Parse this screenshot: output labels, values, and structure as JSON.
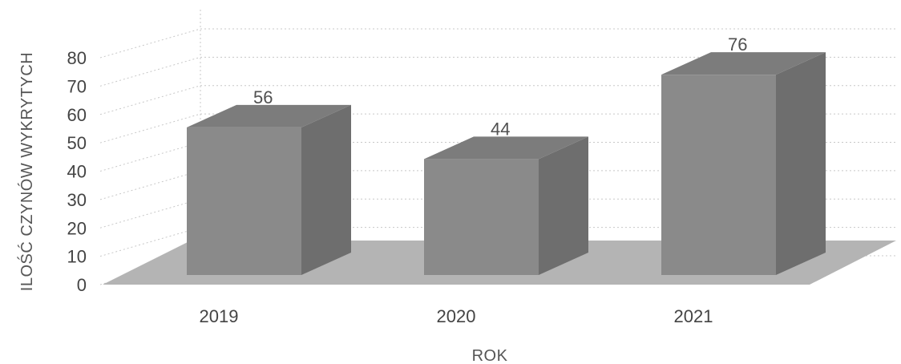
{
  "chart_data": {
    "type": "bar",
    "title": "",
    "xlabel": "ROK",
    "ylabel": "ILOŚĆ CZYNÓW WYKRYTYCH",
    "categories": [
      "2019",
      "2020",
      "2021"
    ],
    "values": [
      56,
      44,
      76
    ],
    "data_labels": [
      "56",
      "44",
      "76"
    ],
    "yticks": [
      "0",
      "10",
      "20",
      "30",
      "40",
      "50",
      "60",
      "70",
      "80"
    ],
    "ylim": [
      0,
      80
    ],
    "grid": true,
    "legend": "none",
    "style": "3d-column",
    "colors": {
      "bar_front": "#8a8a8a",
      "bar_side": "#6e6e6e",
      "bar_top": "#7c7c7c",
      "floor": "#b4b4b4",
      "grid": "#c8c8c8"
    }
  }
}
